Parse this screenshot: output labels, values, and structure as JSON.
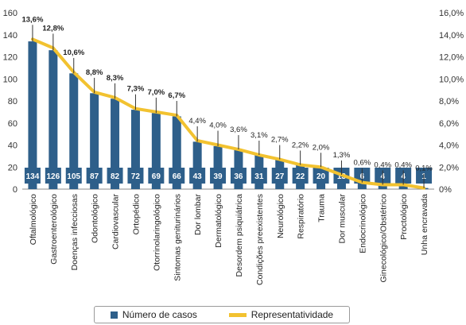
{
  "chart_data": {
    "type": "bar",
    "categories": [
      "Oftalmológico",
      "Gastroenterológico",
      "Doenças infecciosas",
      "Odontológico",
      "Cardiovascular",
      "Ortopédico",
      "Otorrinolaringológico",
      "Sintomas geniturinários",
      "Dor lombar",
      "Dermatológico",
      "Desordem psiquiátrica",
      "Condições preexistentes",
      "Neurológico",
      "Respiratório",
      "Trauma",
      "Dor muscular",
      "Endocrinológico",
      "Ginecológico/Obstétrico",
      "Proctológico",
      "Unha encravada"
    ],
    "series": [
      {
        "name": "Número de casos",
        "axis": "left",
        "color": "#2e5f8a",
        "values": [
          134,
          126,
          105,
          87,
          82,
          72,
          69,
          66,
          43,
          39,
          36,
          31,
          27,
          22,
          20,
          13,
          6,
          4,
          4,
          1
        ]
      },
      {
        "name": "Representatividade",
        "axis": "right",
        "color": "#f2c230",
        "values": [
          13.6,
          12.8,
          10.6,
          8.8,
          8.3,
          7.3,
          7.0,
          6.7,
          4.4,
          4.0,
          3.6,
          3.1,
          2.7,
          2.2,
          2.0,
          1.3,
          0.6,
          0.4,
          0.4,
          0.1
        ],
        "labels": [
          "13,6%",
          "12,8%",
          "10,6%",
          "8,8%",
          "8,3%",
          "7,3%",
          "7,0%",
          "6,7%",
          "4,4%",
          "4,0%",
          "3,6%",
          "3,1%",
          "2,7%",
          "2,2%",
          "2,0%",
          "1,3%",
          "0,6%",
          "0,4%",
          "0,4%",
          "0,1%"
        ]
      }
    ],
    "ylim_left": [
      0,
      160
    ],
    "yticks_left": [
      "0",
      "20",
      "40",
      "60",
      "80",
      "100",
      "120",
      "140",
      "160"
    ],
    "ylim_right": [
      0,
      16
    ],
    "yticks_right": [
      "0%",
      "2,0%",
      "4,0%",
      "6,0%",
      "8,0%",
      "10,0%",
      "12,0%",
      "14,0%",
      "16,0%"
    ],
    "legend": {
      "position": "bottom",
      "items": [
        "Número de casos",
        "Representatividade"
      ]
    },
    "grid": false
  }
}
